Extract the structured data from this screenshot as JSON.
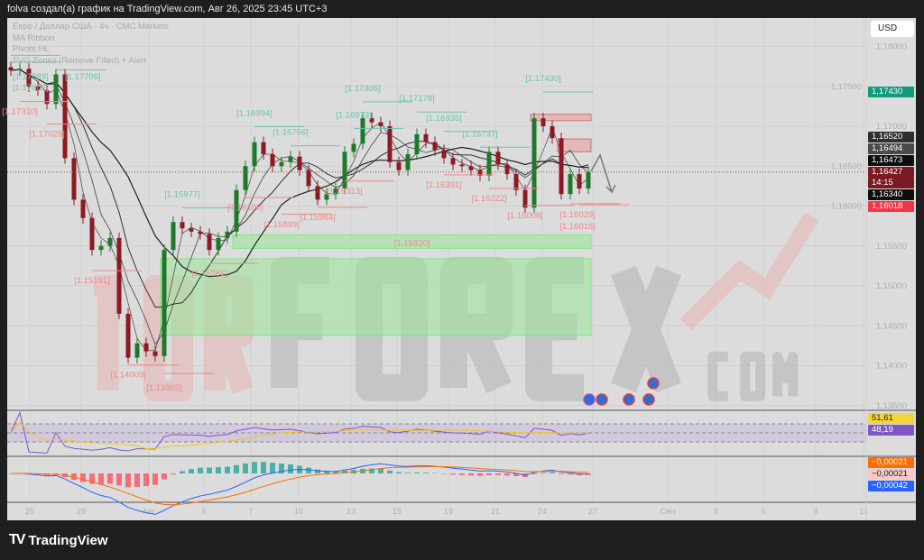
{
  "header": {
    "title": "folva создал(а) график на TradingView.com, Авг 26, 2025 23:45 UTC+3"
  },
  "legend": {
    "symbol": "Евро / Доллар США · 4ч · CMC Markets",
    "ind1": "MA Ribbon",
    "ind2": "Pivots HL",
    "ind3": "FVG Zones (Remove Filled) + Alert"
  },
  "currency_button": "USD",
  "footer": {
    "brand": "TradingView"
  },
  "watermark": {
    "text": "TORFOREX.COM"
  },
  "colors": {
    "up": "#1e7a2a",
    "down": "#8c1a24",
    "pivot_high": "#6cc4b0",
    "pivot_low": "#f08a8a",
    "fvg_bull": "#9be59b",
    "fvg_bear": "#e6a0a0"
  },
  "price_labels": [
    {
      "text": "1,17430",
      "bg": "#0f9b7c",
      "fg": "#fff"
    },
    {
      "text": "1,16520",
      "bg": "#2e2e2e",
      "fg": "#fff"
    },
    {
      "text": "1,16494",
      "bg": "#4a4a4a",
      "fg": "#fff"
    },
    {
      "text": "1,16473",
      "bg": "#0e0e0e",
      "fg": "#fff"
    },
    {
      "text": "1,16427",
      "bg": "#7a1a22",
      "fg": "#fff"
    },
    {
      "text": "14:15",
      "bg": "#7a1a22",
      "fg": "#fff"
    },
    {
      "text": "1,16340",
      "bg": "#0e0e0e",
      "fg": "#fff"
    },
    {
      "text": "1,16018",
      "bg": "#f23645",
      "fg": "#fff"
    },
    {
      "text": "51,61",
      "bg": "#f5d33a",
      "fg": "#222"
    },
    {
      "text": "48,19",
      "bg": "#7e57c2",
      "fg": "#fff"
    },
    {
      "text": "−0,00021",
      "bg": "#ff6d00",
      "fg": "#fff"
    },
    {
      "text": "−0,00021",
      "bg": "#f7c9c9",
      "fg": "#222"
    },
    {
      "text": "−0,00042",
      "bg": "#2962ff",
      "fg": "#fff"
    }
  ],
  "chart_data": {
    "type": "candlestick",
    "symbol": "EURUSD 4h",
    "ylim": [
      1.133,
      1.183
    ],
    "y_ticks": [
      "1,18000",
      "1,17500",
      "1,17000",
      "1,16500",
      "1,16000",
      "1,15500",
      "1,15000",
      "1,14500",
      "1,14000",
      "1,13500"
    ],
    "x_ticks": [
      "25",
      "29",
      "Авг",
      "5",
      "7",
      "10",
      "13",
      "15",
      "19",
      "21",
      "24",
      "27",
      "Сен",
      "3",
      "5",
      "9",
      "11"
    ],
    "current_price": 1.16427,
    "close": [
      1.177,
      1.1772,
      1.175,
      1.1745,
      1.1728,
      1.1765,
      1.166,
      1.1608,
      1.1585,
      1.1545,
      1.155,
      1.156,
      1.1465,
      1.141,
      1.1428,
      1.1418,
      1.1412,
      1.1545,
      1.158,
      1.1572,
      1.1568,
      1.1565,
      1.1545,
      1.156,
      1.1568,
      1.162,
      1.165,
      1.168,
      1.1665,
      1.165,
      1.1655,
      1.1662,
      1.1645,
      1.1625,
      1.1608,
      1.1615,
      1.1622,
      1.1668,
      1.1678,
      1.171,
      1.1705,
      1.17,
      1.1655,
      1.1645,
      1.1665,
      1.169,
      1.168,
      1.167,
      1.166,
      1.1652,
      1.165,
      1.1645,
      1.1638,
      1.1668,
      1.1652,
      1.164,
      1.162,
      1.1598,
      1.171,
      1.17,
      1.1685,
      1.1615,
      1.164,
      1.1622,
      1.16427
    ],
    "pivots_high": [
      {
        "bar": 0,
        "text": "[1.17889]"
      },
      {
        "bar": 0,
        "text": "[1.17802]"
      },
      {
        "bar": 5,
        "text": "[1.17706]"
      },
      {
        "bar": 19,
        "text": "[1.15977]"
      },
      {
        "bar": 27,
        "text": "[1.16994]"
      },
      {
        "bar": 31,
        "text": "[1.16756]"
      },
      {
        "bar": 38,
        "text": "[1.16973]"
      },
      {
        "bar": 39,
        "text": "[1.17306]"
      },
      {
        "bar": 45,
        "text": "[1.17178]"
      },
      {
        "bar": 48,
        "text": "[1.16935]"
      },
      {
        "bar": 52,
        "text": "[1.16737]"
      },
      {
        "bar": 59,
        "text": "[1.17430]"
      }
    ],
    "pivots_low": [
      {
        "bar": 1,
        "text": "[1.17310]"
      },
      {
        "bar": 4,
        "text": "[1.17028]"
      },
      {
        "bar": 9,
        "text": "[1.15191]"
      },
      {
        "bar": 13,
        "text": "[1.14009]"
      },
      {
        "bar": 17,
        "text": "[1.13903]"
      },
      {
        "bar": 22,
        "text": "[1.15281]"
      },
      {
        "bar": 26,
        "text": "[1.16108]"
      },
      {
        "bar": 30,
        "text": "[1.15899]"
      },
      {
        "bar": 34,
        "text": "[1.15984]"
      },
      {
        "bar": 37,
        "text": "[1.16313]"
      },
      {
        "bar": 48,
        "text": "[1.16391]"
      },
      {
        "bar": 53,
        "text": "[1.16222]"
      },
      {
        "bar": 57,
        "text": "[1.16008]"
      },
      {
        "bar": 62,
        "text": "[1.16029]"
      },
      {
        "bar": 63,
        "text": "[1.16018]"
      }
    ],
    "fvg_zones": [
      {
        "type": "bull",
        "from_bar": 25,
        "top": 1.1564,
        "bottom": 1.1547,
        "text": "[1.15830]"
      },
      {
        "type": "bull",
        "from_bar": 17,
        "top": 1.1534,
        "bottom": 1.1438
      },
      {
        "type": "bear",
        "from_bar": 58,
        "top": 1.1715,
        "bottom": 1.1707
      },
      {
        "type": "bear",
        "from_bar": 61,
        "top": 1.1684,
        "bottom": 1.1668
      }
    ],
    "rsi": {
      "last": [
        51.61,
        48.19
      ],
      "bands": [
        70,
        30
      ]
    },
    "macd": {
      "macd": -0.00021,
      "histogram": -0.00021,
      "signal": -0.00042
    }
  }
}
